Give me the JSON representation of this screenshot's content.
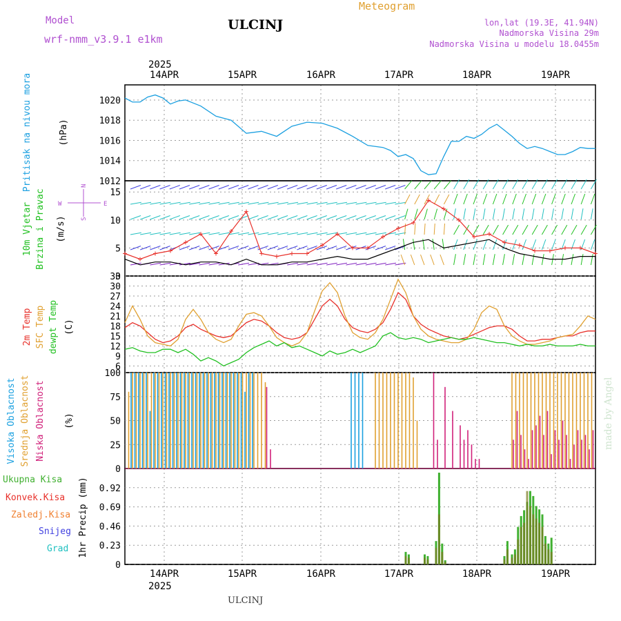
{
  "header": {
    "model_label": "Model",
    "model_name": "wrf-nmm_v3.9.1 e1km",
    "station": "ULCINJ",
    "product": "Meteogram",
    "lonlat": "lon,lat (19.3E, 41.94N)",
    "altitude": "Nadmorska Visina 29m",
    "model_altitude": "Nadmorska Visina u modelu 18.0455m",
    "footer_station": "ULCINJ",
    "watermark": "made by Angel"
  },
  "colors": {
    "pressure": "#1a9fe0",
    "wind_speed": "#000000",
    "wind_gust": "#e8302a",
    "temp2m": "#e8302a",
    "sfc_temp": "#e0a030",
    "dewpt": "#20c020",
    "cloud_high": "#1aa0e0",
    "cloud_mid": "#e0a030",
    "cloud_low": "#d0207a",
    "precip_total": "#40b030",
    "precip_conv": "#e8302a",
    "precip_frozen": "#f08030",
    "snow": "#4040e0",
    "hail": "#20c0c0",
    "purple_text": "#b050d0",
    "orange_text": "#e0a030"
  },
  "chart_data": [
    {
      "type": "line",
      "panel": "pressure",
      "ylabel_left": "Pritisak na nivou mora",
      "ylabel_unit": "(hPa)",
      "ylim": [
        1012,
        1021.5
      ],
      "yticks": [
        1012,
        1014,
        1016,
        1018,
        1020
      ],
      "x_days": [
        0,
        0.1,
        0.2,
        0.3,
        0.4,
        0.5,
        0.6,
        0.7,
        0.8,
        1.0,
        1.2,
        1.4,
        1.6,
        1.8,
        2.0,
        2.2,
        2.4,
        2.6,
        2.8,
        3.0,
        3.2,
        3.4,
        3.5,
        3.6,
        3.7,
        3.8,
        3.9,
        4.0,
        4.1,
        4.2,
        4.3,
        4.4,
        4.5,
        4.6,
        4.7,
        4.8,
        4.9,
        5.0,
        5.1,
        5.2,
        5.3,
        5.4,
        5.5,
        5.6,
        5.7,
        5.8,
        5.9,
        6.0,
        6.1,
        6.2
      ],
      "values": [
        1020.2,
        1019.8,
        1019.8,
        1020.3,
        1020.5,
        1020.2,
        1019.6,
        1019.9,
        1020.0,
        1019.4,
        1018.4,
        1018.0,
        1016.7,
        1016.9,
        1016.4,
        1017.4,
        1017.8,
        1017.7,
        1017.2,
        1016.4,
        1015.5,
        1015.3,
        1015.0,
        1014.4,
        1014.6,
        1014.2,
        1013.0,
        1012.6,
        1012.7,
        1014.4,
        1015.9,
        1015.9,
        1016.4,
        1016.2,
        1016.6,
        1017.2,
        1017.6,
        1017.0,
        1016.4,
        1015.7,
        1015.2,
        1015.4,
        1015.2,
        1014.9,
        1014.6,
        1014.6,
        1014.9,
        1015.3,
        1015.2,
        1015.2
      ]
    },
    {
      "type": "line",
      "panel": "wind",
      "ylabel_left": "10m Vjetar",
      "ylabel_left2": "Brzina i Pravac",
      "ylabel_unit": "(m/s)",
      "compass": {
        "n": "N",
        "s": "S",
        "e": "E",
        "w": "W"
      },
      "ylim": [
        0,
        17
      ],
      "yticks": [
        0,
        5,
        10,
        15
      ],
      "x_days": [
        0,
        0.2,
        0.4,
        0.6,
        0.8,
        1.0,
        1.2,
        1.4,
        1.6,
        1.8,
        2.0,
        2.2,
        2.4,
        2.6,
        2.8,
        3.0,
        3.2,
        3.4,
        3.6,
        3.8,
        4.0,
        4.2,
        4.4,
        4.6,
        4.8,
        5.0,
        5.2,
        5.4,
        5.6,
        5.8,
        6.0,
        6.2
      ],
      "series": [
        {
          "name": "speed",
          "values": [
            3.0,
            2.0,
            2.5,
            2.5,
            2.0,
            2.5,
            2.5,
            2.0,
            3.0,
            2.0,
            2.0,
            2.5,
            2.5,
            3.0,
            3.5,
            3.0,
            3.0,
            4.0,
            5.0,
            6.0,
            6.5,
            5.0,
            5.5,
            6.0,
            6.5,
            5.0,
            4.0,
            3.5,
            3.0,
            3.0,
            3.5,
            3.5
          ]
        },
        {
          "name": "gust",
          "values": [
            4.0,
            3.0,
            4.0,
            4.5,
            6.0,
            7.5,
            4.0,
            8.0,
            11.5,
            4.0,
            3.5,
            4.0,
            4.0,
            5.5,
            7.5,
            5.0,
            5.0,
            7.0,
            8.5,
            9.5,
            13.5,
            12.0,
            10.0,
            7.0,
            7.5,
            6.0,
            5.5,
            4.5,
            4.5,
            5.0,
            5.0,
            4.0
          ]
        }
      ]
    },
    {
      "type": "line",
      "panel": "temperature",
      "ylabel_left": "2m Temp",
      "ylabel_left2": "SFC Temp",
      "ylabel_left3": "dewpt Temp",
      "ylabel_unit": "(C)",
      "ylim": [
        4,
        33
      ],
      "yticks": [
        6,
        9,
        12,
        15,
        18,
        21,
        24,
        27,
        30,
        33
      ],
      "x_days": [
        0,
        0.1,
        0.2,
        0.3,
        0.4,
        0.5,
        0.6,
        0.7,
        0.8,
        0.9,
        1.0,
        1.1,
        1.2,
        1.3,
        1.4,
        1.5,
        1.6,
        1.7,
        1.8,
        1.9,
        2.0,
        2.1,
        2.2,
        2.3,
        2.4,
        2.5,
        2.6,
        2.7,
        2.8,
        2.9,
        3.0,
        3.1,
        3.2,
        3.3,
        3.4,
        3.5,
        3.6,
        3.7,
        3.8,
        3.9,
        4.0,
        4.1,
        4.2,
        4.3,
        4.4,
        4.5,
        4.6,
        4.7,
        4.8,
        4.9,
        5.0,
        5.1,
        5.2,
        5.3,
        5.4,
        5.5,
        5.6,
        5.7,
        5.8,
        5.9,
        6.0,
        6.1,
        6.2
      ],
      "series": [
        {
          "name": "2m Temp",
          "values": [
            17.5,
            19.0,
            18.0,
            16.0,
            14.0,
            13.0,
            13.5,
            15.0,
            17.5,
            18.5,
            17.0,
            16.0,
            15.0,
            14.5,
            15.0,
            17.0,
            19.0,
            20.0,
            19.5,
            18.0,
            16.0,
            14.5,
            14.0,
            14.5,
            16.0,
            20.0,
            24.0,
            26.0,
            24.0,
            20.0,
            17.5,
            16.5,
            16.0,
            17.0,
            19.0,
            23.0,
            28.0,
            26.0,
            21.0,
            18.5,
            17.0,
            16.0,
            15.0,
            14.5,
            14.0,
            14.5,
            15.5,
            16.5,
            17.5,
            18.0,
            18.0,
            17.0,
            15.0,
            13.5,
            13.5,
            14.0,
            14.0,
            14.5,
            15.0,
            15.0,
            16.0,
            16.5,
            16.5
          ]
        },
        {
          "name": "SFC Temp",
          "values": [
            19.0,
            24.0,
            20.0,
            15.0,
            13.0,
            12.5,
            12.0,
            14.0,
            20.0,
            23.0,
            20.0,
            16.0,
            14.0,
            13.0,
            14.0,
            18.0,
            21.5,
            22.0,
            21.0,
            18.0,
            14.5,
            13.0,
            12.0,
            13.0,
            16.0,
            22.5,
            28.5,
            31.0,
            28.0,
            21.0,
            16.0,
            14.5,
            14.0,
            16.0,
            20.0,
            26.0,
            32.0,
            28.0,
            21.0,
            17.0,
            15.0,
            14.0,
            13.5,
            13.0,
            13.0,
            14.0,
            17.0,
            22.0,
            24.0,
            23.0,
            18.0,
            15.0,
            13.5,
            12.5,
            12.5,
            13.0,
            13.5,
            14.5,
            15.0,
            15.5,
            18.0,
            21.0,
            20.0
          ]
        },
        {
          "name": "dewpt Temp",
          "values": [
            11.0,
            11.5,
            10.5,
            10.0,
            10.0,
            11.0,
            11.0,
            10.0,
            11.0,
            9.5,
            7.5,
            8.5,
            7.5,
            6.0,
            7.0,
            8.0,
            10.0,
            11.5,
            12.5,
            13.5,
            12.0,
            13.0,
            11.5,
            12.0,
            11.0,
            10.0,
            9.0,
            10.5,
            9.5,
            10.0,
            11.0,
            10.0,
            11.0,
            12.0,
            15.0,
            16.0,
            14.5,
            14.0,
            14.5,
            14.0,
            13.0,
            13.5,
            14.0,
            14.5,
            14.0,
            14.0,
            14.5,
            14.0,
            13.5,
            13.0,
            13.0,
            12.5,
            12.0,
            12.5,
            12.0,
            12.0,
            12.5,
            12.0,
            12.0,
            12.0,
            12.5,
            12.0,
            12.0
          ]
        }
      ]
    },
    {
      "type": "bar",
      "panel": "clouds",
      "ylabel_left": "Visoka Oblacnost",
      "ylabel_left2": "Srednja Oblacnost",
      "ylabel_left3": "Niska Oblacnost",
      "ylabel_unit": "(%)",
      "ylim": [
        0,
        100
      ],
      "yticks": [
        0,
        25,
        50,
        75,
        100
      ],
      "x_days": [
        0.05,
        0.1,
        0.15,
        0.2,
        0.25,
        0.3,
        0.35,
        0.4,
        0.45,
        0.5,
        0.55,
        0.6,
        0.65,
        0.7,
        0.75,
        0.8,
        0.85,
        0.9,
        0.95,
        1.0,
        1.05,
        1.1,
        1.15,
        1.2,
        1.25,
        1.3,
        1.35,
        1.4,
        1.45,
        1.5,
        1.55,
        1.6,
        1.65,
        1.7,
        1.75,
        1.8,
        1.85,
        1.9,
        3.0,
        3.05,
        3.1,
        3.15,
        3.3,
        3.35,
        3.4,
        3.45,
        3.5,
        3.55,
        3.6,
        3.65,
        3.7,
        3.75,
        3.8,
        3.85,
        4.05,
        4.1,
        4.2,
        4.3,
        4.4,
        4.45,
        4.5,
        4.55,
        4.6,
        4.65,
        5.1,
        5.15,
        5.2,
        5.25,
        5.3,
        5.35,
        5.4,
        5.45,
        5.5,
        5.55,
        5.6,
        5.65,
        5.7,
        5.75,
        5.8,
        5.85,
        5.9,
        5.95,
        6.0,
        6.05,
        6.1,
        6.15
      ],
      "series": [
        {
          "name": "high",
          "values": [
            0,
            100,
            100,
            100,
            100,
            100,
            60,
            100,
            100,
            100,
            100,
            100,
            100,
            100,
            100,
            100,
            100,
            100,
            100,
            100,
            100,
            100,
            100,
            100,
            100,
            100,
            100,
            100,
            100,
            100,
            100,
            80,
            100,
            100,
            0,
            0,
            0,
            0,
            100,
            100,
            100,
            100,
            0,
            0,
            0,
            0,
            0,
            0,
            0,
            0,
            0,
            0,
            0,
            0,
            0,
            0,
            0,
            0,
            0,
            0,
            0,
            0,
            0,
            0,
            0,
            0,
            0,
            0,
            0,
            0,
            0,
            0,
            0,
            0,
            0,
            0,
            0,
            0,
            0,
            0,
            0,
            0,
            0,
            0,
            0,
            0
          ]
        },
        {
          "name": "mid",
          "values": [
            80,
            100,
            100,
            100,
            100,
            100,
            100,
            100,
            100,
            100,
            100,
            100,
            100,
            100,
            100,
            100,
            100,
            100,
            100,
            100,
            100,
            100,
            100,
            100,
            100,
            100,
            100,
            100,
            100,
            100,
            100,
            100,
            100,
            100,
            100,
            100,
            90,
            0,
            0,
            0,
            0,
            0,
            100,
            100,
            100,
            100,
            100,
            100,
            100,
            100,
            100,
            100,
            95,
            50,
            0,
            0,
            0,
            0,
            0,
            0,
            0,
            0,
            0,
            0,
            100,
            100,
            100,
            100,
            100,
            100,
            100,
            100,
            100,
            100,
            100,
            100,
            100,
            100,
            100,
            100,
            100,
            100,
            100,
            100,
            100,
            100
          ]
        },
        {
          "name": "low",
          "values": [
            0,
            0,
            0,
            0,
            0,
            0,
            0,
            0,
            0,
            0,
            0,
            0,
            0,
            0,
            0,
            0,
            0,
            0,
            0,
            0,
            0,
            0,
            0,
            0,
            0,
            0,
            0,
            0,
            0,
            0,
            0,
            0,
            0,
            0,
            0,
            0,
            85,
            20,
            0,
            0,
            0,
            0,
            0,
            0,
            0,
            0,
            0,
            0,
            0,
            0,
            0,
            0,
            0,
            0,
            100,
            30,
            85,
            60,
            45,
            30,
            40,
            25,
            10,
            10,
            30,
            60,
            35,
            20,
            10,
            40,
            45,
            55,
            35,
            60,
            15,
            40,
            30,
            50,
            35,
            10,
            25,
            40,
            30,
            35,
            20,
            40
          ]
        }
      ]
    },
    {
      "type": "bar",
      "panel": "precipitation",
      "legend": [
        "Ukupna Kisa",
        "Konvek.Kisa",
        "Zaledj.Kisa",
        "Snijeg",
        "Grad"
      ],
      "ylabel_unit": "1hr Precip (mm)",
      "ylim": [
        0,
        1.15
      ],
      "yticks": [
        0,
        0.23,
        0.46,
        0.69,
        0.92
      ],
      "x_days": [
        3.7,
        3.74,
        3.95,
        3.99,
        4.1,
        4.14,
        4.18,
        4.22,
        5.0,
        5.04,
        5.1,
        5.14,
        5.18,
        5.22,
        5.26,
        5.3,
        5.34,
        5.38,
        5.42,
        5.46,
        5.5,
        5.54,
        5.58,
        5.62,
        5.66,
        5.7,
        5.74,
        5.78,
        5.82,
        5.86,
        5.9,
        5.94,
        5.98,
        6.02,
        6.06,
        6.1,
        6.14,
        6.18
      ],
      "series": [
        {
          "name": "Ukupna Kisa",
          "values": [
            0.15,
            0.12,
            0.12,
            0.1,
            0.28,
            1.1,
            0.25,
            0.05,
            0.1,
            0.28,
            0.12,
            0.18,
            0.45,
            0.58,
            0.65,
            0.75,
            0.88,
            0.82,
            0.7,
            0.66,
            0.6,
            0.34,
            0.25,
            0.32,
            0,
            0,
            0,
            0,
            0,
            0,
            0,
            0,
            0,
            0,
            0,
            0,
            0,
            0
          ]
        },
        {
          "name": "Konvek.Kisa",
          "values": [
            0.1,
            0.08,
            0.08,
            0.06,
            0.2,
            0.6,
            0.15,
            0.03,
            0.06,
            0.18,
            0.08,
            0.12,
            0.3,
            0.45,
            0.5,
            0.88,
            0.7,
            0.6,
            0.55,
            0.5,
            0.45,
            0.25,
            0.18,
            0.15,
            0,
            0,
            0,
            0,
            0,
            0,
            0,
            0,
            0,
            0,
            0,
            0,
            0,
            0
          ]
        }
      ]
    }
  ],
  "dates": {
    "year": "2025",
    "labels": [
      "14APR",
      "15APR",
      "16APR",
      "17APR",
      "18APR",
      "19APR"
    ]
  }
}
